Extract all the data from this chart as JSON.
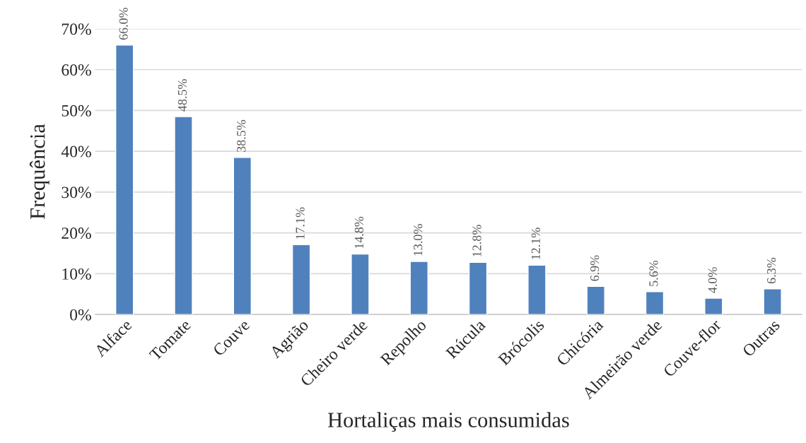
{
  "chart_data": {
    "type": "bar",
    "xlabel": "Hortaliças mais consumidas",
    "ylabel": "Frequência",
    "categories": [
      "Alface",
      "Tomate",
      "Couve",
      "Agrião",
      "Cheiro verde",
      "Repolho",
      "Rúcula",
      "Brócolis",
      "Chicória",
      "Almeirão verde",
      "Couve-flor",
      "Outras"
    ],
    "values": [
      66.0,
      48.5,
      38.5,
      17.1,
      14.8,
      13.0,
      12.8,
      12.1,
      6.9,
      5.6,
      4.0,
      6.3
    ],
    "value_labels": [
      "66.0%",
      "48.5%",
      "38.5%",
      "17.1%",
      "14.8%",
      "13.0%",
      "12.8%",
      "12.1%",
      "6.9%",
      "5.6%",
      "4.0%",
      "6.3%"
    ],
    "color": "#4f81bd",
    "ylim": [
      0,
      70
    ],
    "yticks": [
      {
        "value": 0,
        "label": "0%"
      },
      {
        "value": 10,
        "label": "10%"
      },
      {
        "value": 20,
        "label": "20%"
      },
      {
        "value": 30,
        "label": "30%"
      },
      {
        "value": 40,
        "label": "40%"
      },
      {
        "value": 50,
        "label": "50%"
      },
      {
        "value": 60,
        "label": "60%"
      },
      {
        "value": 70,
        "label": "70%"
      }
    ],
    "grid": "y",
    "legend": false
  }
}
